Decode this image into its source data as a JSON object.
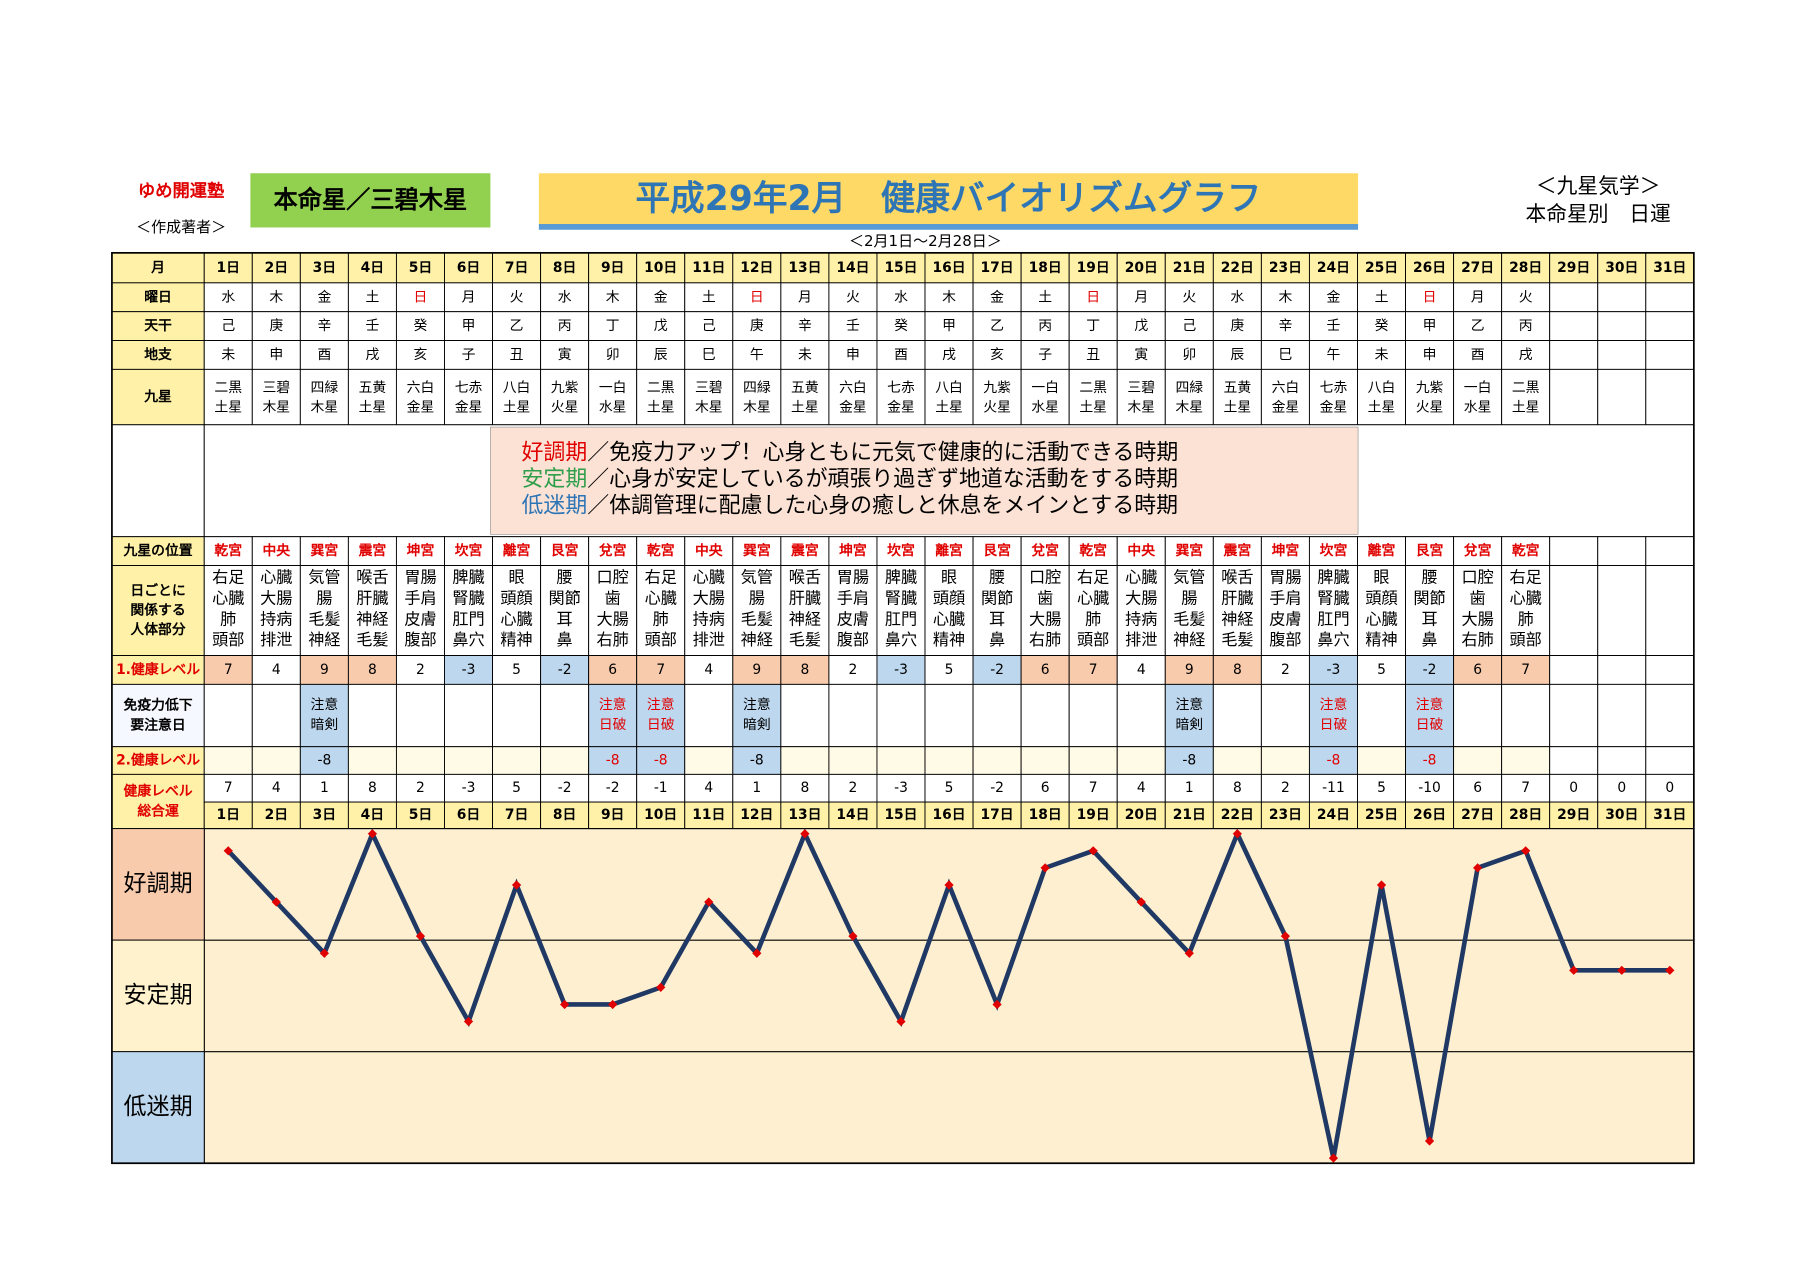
{
  "header": {
    "school": "ゆめ開運塾",
    "author": "＜作成著者＞",
    "star": "本命星／三碧木星",
    "title": "平成29年2月　健康バイオリズムグラフ",
    "period": "＜2月1日～2月28日＞",
    "system": "＜九星気学＞",
    "subtitle": "本命星別　日運"
  },
  "table": {
    "days": {
      "label": "月",
      "values": [
        "1日",
        "2日",
        "3日",
        "4日",
        "5日",
        "6日",
        "7日",
        "8日",
        "9日",
        "10日",
        "11日",
        "12日",
        "13日",
        "14日",
        "15日",
        "16日",
        "17日",
        "18日",
        "19日",
        "20日",
        "21日",
        "22日",
        "23日",
        "24日",
        "25日",
        "26日",
        "27日",
        "28日",
        "29日",
        "30日",
        "31日"
      ]
    },
    "weekday": {
      "label": "曜日",
      "values": [
        "水",
        "木",
        "金",
        "土",
        "日",
        "月",
        "火",
        "水",
        "木",
        "金",
        "土",
        "日",
        "月",
        "火",
        "水",
        "木",
        "金",
        "土",
        "日",
        "月",
        "火",
        "水",
        "木",
        "金",
        "土",
        "日",
        "月",
        "火"
      ],
      "red_indices": [
        4,
        11,
        18,
        25
      ],
      "red": "#e00000"
    },
    "stem": {
      "label": "天干",
      "values": [
        "己",
        "庚",
        "辛",
        "壬",
        "癸",
        "甲",
        "乙",
        "丙",
        "丁",
        "戊",
        "己",
        "庚",
        "辛",
        "壬",
        "癸",
        "甲",
        "乙",
        "丙",
        "丁",
        "戊",
        "己",
        "庚",
        "辛",
        "壬",
        "癸",
        "甲",
        "乙",
        "丙"
      ]
    },
    "branch": {
      "label": "地支",
      "values": [
        "未",
        "申",
        "酉",
        "戌",
        "亥",
        "子",
        "丑",
        "寅",
        "卯",
        "辰",
        "巳",
        "午",
        "未",
        "申",
        "酉",
        "戌",
        "亥",
        "子",
        "丑",
        "寅",
        "卯",
        "辰",
        "巳",
        "午",
        "未",
        "申",
        "酉",
        "戌"
      ]
    },
    "star": {
      "label": "九星",
      "values": [
        [
          "二黒",
          "土星"
        ],
        [
          "三碧",
          "木星"
        ],
        [
          "四緑",
          "木星"
        ],
        [
          "五黄",
          "土星"
        ],
        [
          "六白",
          "金星"
        ],
        [
          "七赤",
          "金星"
        ],
        [
          "八白",
          "土星"
        ],
        [
          "九紫",
          "火星"
        ],
        [
          "一白",
          "水星"
        ],
        [
          "二黒",
          "土星"
        ],
        [
          "三碧",
          "木星"
        ],
        [
          "四緑",
          "木星"
        ],
        [
          "五黄",
          "土星"
        ],
        [
          "六白",
          "金星"
        ],
        [
          "七赤",
          "金星"
        ],
        [
          "八白",
          "土星"
        ],
        [
          "九紫",
          "火星"
        ],
        [
          "一白",
          "水星"
        ],
        [
          "二黒",
          "土星"
        ],
        [
          "三碧",
          "木星"
        ],
        [
          "四緑",
          "木星"
        ],
        [
          "五黄",
          "土星"
        ],
        [
          "六白",
          "金星"
        ],
        [
          "七赤",
          "金星"
        ],
        [
          "八白",
          "土星"
        ],
        [
          "九紫",
          "火星"
        ],
        [
          "一白",
          "水星"
        ],
        [
          "二黒",
          "土星"
        ]
      ]
    },
    "legend": [
      {
        "term": "好調期",
        "color": "#e00000",
        "text": "／免疫力アップ！心身ともに元気で健康的に活動できる時期"
      },
      {
        "term": "安定期",
        "color": "#2e9e4a",
        "text": "／心身が安定しているが頑張り過ぎず地道な活動をする時期"
      },
      {
        "term": "低迷期",
        "color": "#2e75b6",
        "text": "／体調管理に配慮した心身の癒しと休息をメインとする時期"
      }
    ],
    "palace": {
      "label": "九星の位置",
      "color": "#e00000",
      "values": [
        "乾宮",
        "中央",
        "巽宮",
        "震宮",
        "坤宮",
        "坎宮",
        "離宮",
        "艮宮",
        "兌宮",
        "乾宮",
        "中央",
        "巽宮",
        "震宮",
        "坤宮",
        "坎宮",
        "離宮",
        "艮宮",
        "兌宮",
        "乾宮",
        "中央",
        "巽宮",
        "震宮",
        "坤宮",
        "坎宮",
        "離宮",
        "艮宮",
        "兌宮",
        "乾宮"
      ]
    },
    "body": {
      "label": [
        "日ごとに",
        "関係する",
        "人体部分"
      ],
      "values": [
        [
          "右足",
          "心臓",
          "肺",
          "頭部"
        ],
        [
          "心臓",
          "大腸",
          "持病",
          "排泄"
        ],
        [
          "気管",
          "腸",
          "毛髪",
          "神経"
        ],
        [
          "喉舌",
          "肝臓",
          "神経",
          "毛髪"
        ],
        [
          "胃腸",
          "手肩",
          "皮膚",
          "腹部"
        ],
        [
          "脾臓",
          "腎臓",
          "肛門",
          "鼻穴"
        ],
        [
          "眼",
          "頭顔",
          "心臓",
          "精神"
        ],
        [
          "腰",
          "関節",
          "耳",
          "鼻"
        ],
        [
          "口腔",
          "歯",
          "大腸",
          "右肺"
        ],
        [
          "右足",
          "心臓",
          "肺",
          "頭部"
        ],
        [
          "心臓",
          "大腸",
          "持病",
          "排泄"
        ],
        [
          "気管",
          "腸",
          "毛髪",
          "神経"
        ],
        [
          "喉舌",
          "肝臓",
          "神経",
          "毛髪"
        ],
        [
          "胃腸",
          "手肩",
          "皮膚",
          "腹部"
        ],
        [
          "脾臓",
          "腎臓",
          "肛門",
          "鼻穴"
        ],
        [
          "眼",
          "頭顔",
          "心臓",
          "精神"
        ],
        [
          "腰",
          "関節",
          "耳",
          "鼻"
        ],
        [
          "口腔",
          "歯",
          "大腸",
          "右肺"
        ],
        [
          "右足",
          "心臓",
          "肺",
          "頭部"
        ],
        [
          "心臓",
          "大腸",
          "持病",
          "排泄"
        ],
        [
          "気管",
          "腸",
          "毛髪",
          "神経"
        ],
        [
          "喉舌",
          "肝臓",
          "神経",
          "毛髪"
        ],
        [
          "胃腸",
          "手肩",
          "皮膚",
          "腹部"
        ],
        [
          "脾臓",
          "腎臓",
          "肛門",
          "鼻穴"
        ],
        [
          "眼",
          "頭顔",
          "心臓",
          "精神"
        ],
        [
          "腰",
          "関節",
          "耳",
          "鼻"
        ],
        [
          "口腔",
          "歯",
          "大腸",
          "右肺"
        ],
        [
          "右足",
          "心臓",
          "肺",
          "頭部"
        ]
      ]
    },
    "level1": {
      "label": "1.健康レベル",
      "label_color": "#e00000",
      "values": [
        7,
        4,
        9,
        8,
        2,
        -3,
        5,
        -2,
        6,
        7,
        4,
        9,
        8,
        2,
        -3,
        5,
        -2,
        6,
        7,
        4,
        9,
        8,
        2,
        -3,
        5,
        -2,
        6,
        7
      ],
      "tones": [
        "h",
        "n",
        "h",
        "h",
        "n",
        "l",
        "n",
        "l",
        "h",
        "h",
        "n",
        "h",
        "h",
        "n",
        "l",
        "n",
        "l",
        "h",
        "h",
        "n",
        "h",
        "h",
        "n",
        "l",
        "n",
        "l",
        "h",
        "h"
      ],
      "palette": {
        "h": "#f8cbad",
        "l": "#bdd7ee",
        "n": "#ffffff"
      }
    },
    "caution": {
      "label": [
        "免疫力低下",
        "要注意日"
      ],
      "values": [
        null,
        null,
        {
          "lines": [
            "注意",
            "暗剣"
          ],
          "color": "#000000"
        },
        null,
        null,
        null,
        null,
        null,
        {
          "lines": [
            "注意",
            "日破"
          ],
          "color": "#e00000"
        },
        {
          "lines": [
            "注意",
            "日破"
          ],
          "color": "#e00000"
        },
        null,
        {
          "lines": [
            "注意",
            "暗剣"
          ],
          "color": "#000000"
        },
        null,
        null,
        null,
        null,
        null,
        null,
        null,
        null,
        {
          "lines": [
            "注意",
            "暗剣"
          ],
          "color": "#000000"
        },
        null,
        null,
        {
          "lines": [
            "注意",
            "日破"
          ],
          "color": "#e00000"
        },
        null,
        {
          "lines": [
            "注意",
            "日破"
          ],
          "color": "#e00000"
        },
        null,
        null
      ]
    },
    "level2": {
      "label": "2.健康レベル",
      "label_color": "#e00000",
      "values": [
        null,
        null,
        -8,
        null,
        null,
        null,
        null,
        null,
        -8,
        -8,
        null,
        -8,
        null,
        null,
        null,
        null,
        null,
        null,
        null,
        null,
        -8,
        null,
        null,
        -8,
        null,
        -8,
        null,
        null
      ]
    },
    "total": {
      "label": [
        "健康レベル",
        "総合運"
      ],
      "label_color": "#e00000",
      "values": [
        7,
        4,
        1,
        8,
        2,
        -3,
        5,
        -2,
        -2,
        -1,
        4,
        1,
        8,
        2,
        -3,
        5,
        -2,
        6,
        7,
        4,
        1,
        8,
        2,
        -11,
        5,
        -10,
        6,
        7,
        0,
        0,
        0
      ]
    }
  },
  "chart": {
    "type": "line",
    "bands": [
      "好調期",
      "安定期",
      "低迷期"
    ],
    "band_colors": [
      "#f8cbad",
      "#fff2cc",
      "#bdd7ee"
    ],
    "background": "#fdefd0",
    "ylim": [
      -11.3,
      8.3
    ],
    "line_color": "#1f3864",
    "marker_color": "#e00000"
  }
}
